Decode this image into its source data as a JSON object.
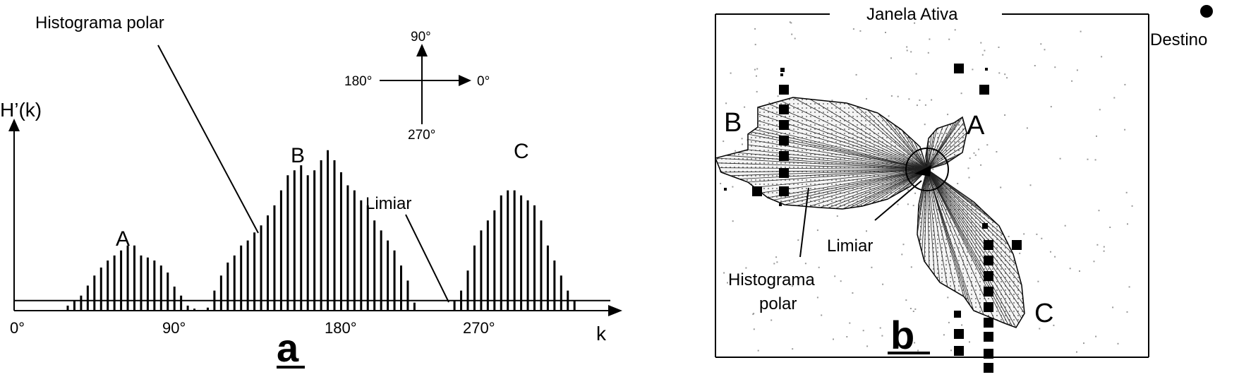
{
  "panel_a": {
    "callout_histogram": "Histograma polar",
    "y_label": "H’(k)",
    "x_label": "k",
    "threshold_label": "Limiar",
    "panel_letter": "a",
    "x_ticks": [
      "0°",
      "90°",
      "180°",
      "270°"
    ],
    "compass": {
      "north": "90°",
      "west": "180°",
      "east": "0°",
      "south": "270°"
    },
    "peak_labels": [
      "A",
      "B",
      "C"
    ],
    "threshold_value": 1,
    "bars": [
      0.5,
      1,
      1.5,
      2.5,
      3.5,
      4.3,
      5,
      5.5,
      6,
      6.5,
      6.5,
      5.5,
      5.3,
      5,
      4.5,
      3.8,
      2.4,
      1.5,
      0.5,
      0.2,
      0,
      0.3,
      2,
      3.5,
      4.8,
      5.5,
      6.5,
      7,
      7.8,
      8.5,
      9.5,
      10.5,
      12,
      13.5,
      14,
      14.5,
      13.5,
      14,
      15,
      16,
      15,
      13.8,
      12.5,
      12,
      11,
      10.5,
      9,
      8,
      7,
      6,
      4.5,
      3,
      0.8,
      0,
      0,
      0,
      0,
      0,
      1,
      2,
      4,
      6.5,
      8,
      9,
      10,
      11.5,
      12,
      12,
      11.5,
      11,
      10.5,
      9,
      6.5,
      5,
      3.5,
      2,
      1
    ]
  },
  "panel_b": {
    "window_label": "Janela Ativa",
    "target_label": "Destino",
    "lobe_labels": [
      "A",
      "B",
      "C"
    ],
    "threshold_label": "Limiar",
    "histogram_label_line1": "Histograma",
    "histogram_label_line2": "polar",
    "panel_letter": "b"
  }
}
